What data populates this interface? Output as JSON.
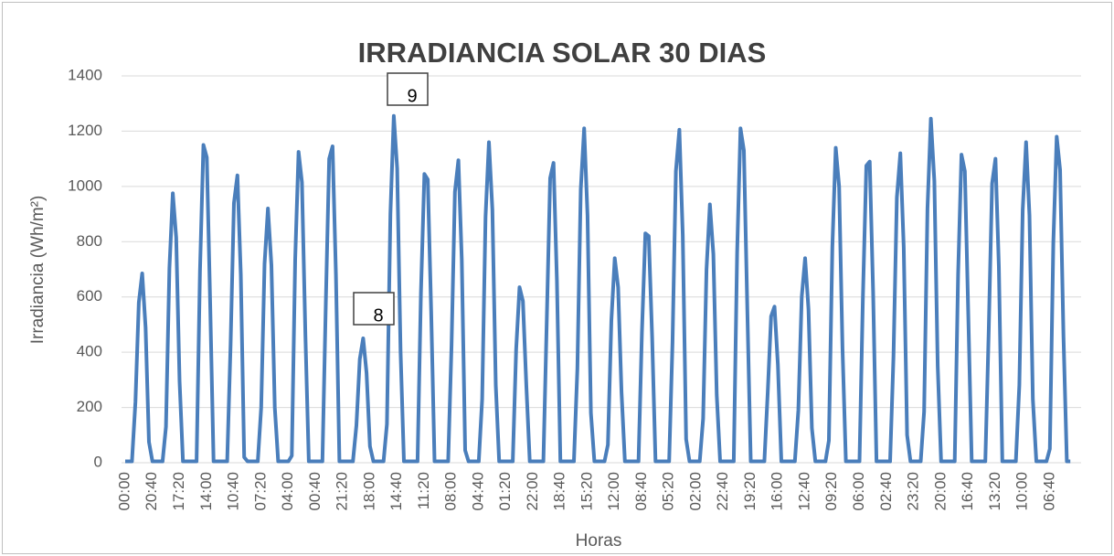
{
  "chart_data": {
    "type": "line",
    "title": "IRRADIANCIA SOLAR 30 DIAS",
    "y_label": "Irradiancia (Wh/m²)",
    "x_label": "Horas",
    "annotations": [
      "9",
      "8"
    ],
    "color": "#4a7ebb",
    "grid": true,
    "ylim": [
      0,
      1400
    ],
    "yticks": [
      0,
      200,
      400,
      600,
      800,
      1000,
      1200,
      1400
    ],
    "categories": [
      "00:00",
      null,
      null,
      null,
      null,
      null,
      null,
      null,
      "20:40",
      null,
      null,
      null,
      null,
      null,
      null,
      null,
      "17:20",
      null,
      null,
      null,
      null,
      null,
      null,
      null,
      "14:00",
      null,
      null,
      null,
      null,
      null,
      null,
      null,
      "10:40",
      null,
      null,
      null,
      null,
      null,
      null,
      null,
      "07:20",
      null,
      null,
      null,
      null,
      null,
      null,
      null,
      "04:00",
      null,
      null,
      null,
      null,
      null,
      null,
      null,
      "00:40",
      null,
      null,
      null,
      null,
      null,
      null,
      null,
      "21:20",
      null,
      null,
      null,
      null,
      null,
      null,
      null,
      "18:00",
      null,
      null,
      null,
      null,
      null,
      null,
      null,
      "14:40",
      null,
      null,
      null,
      null,
      null,
      null,
      null,
      "11:20",
      null,
      null,
      null,
      null,
      null,
      null,
      null,
      "08:00",
      null,
      null,
      null,
      null,
      null,
      null,
      null,
      "04:40",
      null,
      null,
      null,
      null,
      null,
      null,
      null,
      "01:20",
      null,
      null,
      null,
      null,
      null,
      null,
      null,
      "22:00",
      null,
      null,
      null,
      null,
      null,
      null,
      null,
      "18:40",
      null,
      null,
      null,
      null,
      null,
      null,
      null,
      "15:20",
      null,
      null,
      null,
      null,
      null,
      null,
      null,
      "12:00",
      null,
      null,
      null,
      null,
      null,
      null,
      null,
      "08:40",
      null,
      null,
      null,
      null,
      null,
      null,
      null,
      "05:20",
      null,
      null,
      null,
      null,
      null,
      null,
      null,
      "02:00",
      null,
      null,
      null,
      null,
      null,
      null,
      null,
      "22:40",
      null,
      null,
      null,
      null,
      null,
      null,
      null,
      "19:20",
      null,
      null,
      null,
      null,
      null,
      null,
      null,
      "16:00",
      null,
      null,
      null,
      null,
      null,
      null,
      null,
      "12:40",
      null,
      null,
      null,
      null,
      null,
      null,
      null,
      "09:20",
      null,
      null,
      null,
      null,
      null,
      null,
      null,
      "06:00",
      null,
      null,
      null,
      null,
      null,
      null,
      null,
      "02:40",
      null,
      null,
      null,
      null,
      null,
      null,
      null,
      "23:20",
      null,
      null,
      null,
      null,
      null,
      null,
      null,
      "20:00",
      null,
      null,
      null,
      null,
      null,
      null,
      null,
      "16:40",
      null,
      null,
      null,
      null,
      null,
      null,
      null,
      "13:20",
      null,
      null,
      null,
      null,
      null,
      null,
      null,
      "10:00",
      null,
      null,
      null,
      null,
      null,
      null,
      null,
      "06:40",
      null,
      null,
      null,
      null,
      null,
      null
    ],
    "values": [
      5,
      5,
      5,
      220,
      580,
      685,
      490,
      75,
      5,
      5,
      5,
      5,
      130,
      705,
      975,
      815,
      295,
      5,
      5,
      5,
      5,
      5,
      690,
      1150,
      1105,
      575,
      5,
      5,
      5,
      5,
      5,
      425,
      940,
      1040,
      680,
      20,
      5,
      5,
      5,
      5,
      200,
      720,
      920,
      715,
      200,
      5,
      5,
      5,
      5,
      25,
      735,
      1125,
      1015,
      460,
      5,
      5,
      5,
      5,
      5,
      575,
      1100,
      1145,
      680,
      5,
      5,
      5,
      5,
      5,
      135,
      375,
      450,
      325,
      60,
      5,
      5,
      5,
      5,
      140,
      900,
      1255,
      1065,
      405,
      5,
      5,
      5,
      5,
      5,
      615,
      1045,
      1025,
      550,
      5,
      5,
      5,
      5,
      5,
      425,
      980,
      1095,
      735,
      45,
      5,
      5,
      5,
      5,
      230,
      890,
      1160,
      915,
      280,
      5,
      5,
      5,
      5,
      5,
      410,
      635,
      585,
      275,
      5,
      5,
      5,
      5,
      5,
      515,
      1030,
      1085,
      660,
      5,
      5,
      5,
      5,
      5,
      340,
      990,
      1210,
      895,
      180,
      5,
      5,
      5,
      5,
      65,
      515,
      740,
      635,
      255,
      5,
      5,
      5,
      5,
      5,
      470,
      830,
      820,
      455,
      5,
      5,
      5,
      5,
      5,
      435,
      1055,
      1205,
      825,
      85,
      5,
      5,
      5,
      5,
      160,
      700,
      935,
      755,
      245,
      5,
      5,
      5,
      5,
      5,
      760,
      1210,
      1130,
      550,
      5,
      5,
      5,
      5,
      5,
      255,
      530,
      565,
      355,
      5,
      5,
      5,
      5,
      5,
      190,
      600,
      740,
      555,
      125,
      5,
      5,
      5,
      5,
      80,
      780,
      1140,
      1000,
      415,
      5,
      5,
      5,
      5,
      5,
      595,
      1075,
      1090,
      620,
      5,
      5,
      5,
      5,
      5,
      385,
      960,
      1120,
      780,
      100,
      5,
      5,
      5,
      5,
      185,
      920,
      1245,
      1020,
      350,
      5,
      5,
      5,
      5,
      5,
      680,
      1115,
      1055,
      530,
      5,
      5,
      5,
      5,
      5,
      475,
      1010,
      1100,
      710,
      5,
      5,
      5,
      5,
      5,
      280,
      915,
      1160,
      895,
      230,
      5,
      5,
      5,
      5,
      50,
      795,
      1180,
      1060,
      460,
      5,
      5
    ]
  }
}
